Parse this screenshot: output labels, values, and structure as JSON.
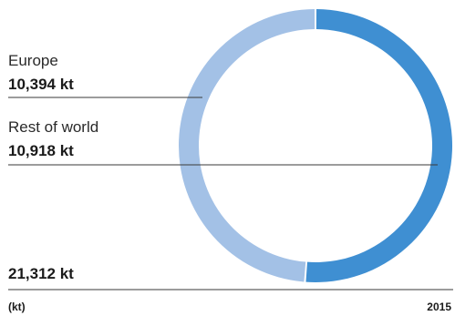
{
  "chart_data": {
    "type": "pie",
    "variant": "donut",
    "categories": [
      "Europe",
      "Rest of world"
    ],
    "values": [
      10394,
      10918
    ],
    "value_labels": [
      "10,394 kt",
      "10,918 kt"
    ],
    "colors": [
      "#a3c1e6",
      "#3f8fd2"
    ],
    "total_label": "21,312 kt",
    "unit_label": "(kt)",
    "year_label": "2015"
  }
}
